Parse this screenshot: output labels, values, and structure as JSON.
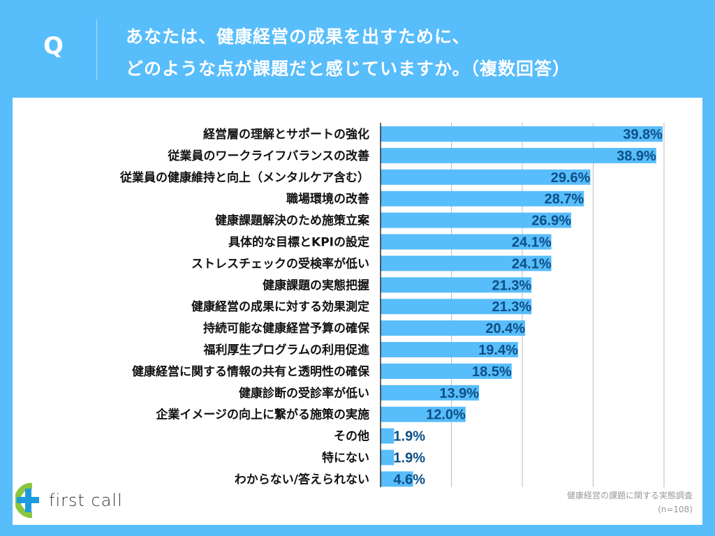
{
  "header": {
    "q_label": "Q",
    "title_line1": "あなたは、健康経営の成果を出すために、",
    "title_line2": "どのような点が課題だと感じていますか。（複数回答）"
  },
  "chart_data": {
    "type": "bar",
    "orientation": "horizontal",
    "categories": [
      "経営層の理解とサポートの強化",
      "従業員のワークライフバランスの改善",
      "従業員の健康維持と向上（メンタルケア含む）",
      "職場環境の改善",
      "健康課題解決のため施策立案",
      "具体的な目標とKPIの設定",
      "ストレスチェックの受検率が低い",
      "健康課題の実態把握",
      "健康経営の成果に対する効果測定",
      "持続可能な健康経営予算の確保",
      "福利厚生プログラムの利用促進",
      "健康経営に関する情報の共有と透明性の確保",
      "健康診断の受診率が低い",
      "企業イメージの向上に繋がる施策の実施",
      "その他",
      "特にない",
      "わからない/答えられない"
    ],
    "values": [
      39.8,
      38.9,
      29.6,
      28.7,
      26.9,
      24.1,
      24.1,
      21.3,
      21.3,
      20.4,
      19.4,
      18.5,
      13.9,
      12.0,
      1.9,
      1.9,
      4.6
    ],
    "value_labels": [
      "39.8%",
      "38.9%",
      "29.6%",
      "28.7%",
      "26.9%",
      "24.1%",
      "24.1%",
      "21.3%",
      "21.3%",
      "20.4%",
      "19.4%",
      "18.5%",
      "13.9%",
      "12.0%",
      "1.9%",
      "1.9%",
      "4.6%"
    ],
    "xlim": [
      0,
      40
    ],
    "grid": true,
    "bar_color": "#58bdfb",
    "label_color": "#0d4f86"
  },
  "logo": {
    "text": "first call"
  },
  "source": {
    "line1": "健康経営の課題に関する実態調査",
    "line2": "(n=108)"
  }
}
